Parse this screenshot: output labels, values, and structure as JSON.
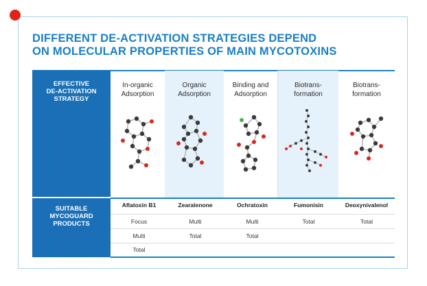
{
  "title_line1": "DIFFERENT DE-ACTIVATION STRATEGIES DEPEND",
  "title_line2": "ON MOLECULAR PROPERTIES OF MAIN MYCOTOXINS",
  "left_labels": {
    "strategy": [
      "EFFECTIVE",
      "DE-ACTIVATION",
      "STRATEGY"
    ],
    "products": [
      "SUITABLE",
      "MYCOGUARD",
      "PRODUCTS"
    ]
  },
  "strategies": [
    {
      "line1": "In-organic",
      "line2": "Adsorption"
    },
    {
      "line1": "Organic",
      "line2": "Adsorption"
    },
    {
      "line1": "Binding and",
      "line2": "Adsorption"
    },
    {
      "line1": "Biotrans-",
      "line2": "formation"
    },
    {
      "line1": "Biotrans-",
      "line2": "formation"
    }
  ],
  "toxins": [
    {
      "name": "Aflatoxin B1",
      "products": [
        "Focus",
        "Multi",
        "Total"
      ]
    },
    {
      "name": "Zearalenone",
      "products": [
        "Multi",
        "Total"
      ]
    },
    {
      "name": "Ochratoxin",
      "products": [
        "Multi",
        "Total"
      ]
    },
    {
      "name": "Fumonisin",
      "products": [
        "Total"
      ]
    },
    {
      "name": "Deoxynivalenol",
      "products": [
        "Total"
      ]
    }
  ],
  "colors": {
    "brand_blue": "#1a7fc4",
    "panel_blue": "#1a6fb6",
    "accent_red": "#e2231a",
    "column_shade": "#e6f2fb"
  }
}
